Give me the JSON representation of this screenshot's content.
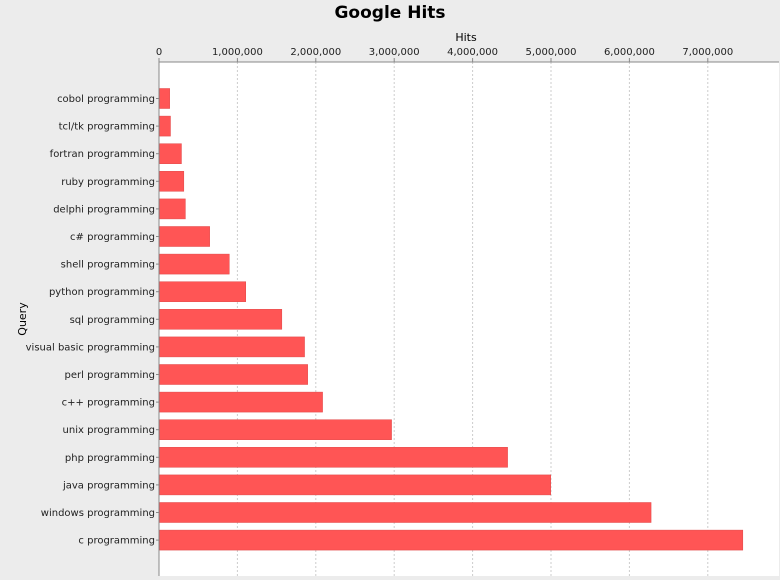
{
  "chart_data": {
    "type": "bar",
    "orientation": "horizontal",
    "title": "Google Hits",
    "xlabel": "Hits",
    "ylabel": "Query",
    "xlim": [
      0,
      7700000
    ],
    "xticks": [
      0,
      1000000,
      2000000,
      3000000,
      4000000,
      5000000,
      6000000,
      7000000
    ],
    "xtick_labels": [
      "0",
      "1,000,000",
      "2,000,000",
      "3,000,000",
      "4,000,000",
      "5,000,000",
      "6,000,000",
      "7,000,000"
    ],
    "x_axis_position": "top",
    "grid": "vertical dashed",
    "bar_color": "#ff5555",
    "categories": [
      "cobol programming",
      "tcl/tk programming",
      "fortran programming",
      "ruby programming",
      "delphi programming",
      "c# programming",
      "shell programming",
      "python programming",
      "sql programming",
      "visual basic programming",
      "perl programming",
      "c++ programming",
      "unix programming",
      "php programming",
      "java programming",
      "windows programming",
      "c programming"
    ],
    "values": [
      130000,
      140000,
      280000,
      310000,
      330000,
      640000,
      890000,
      1100000,
      1560000,
      1850000,
      1890000,
      2080000,
      2960000,
      4440000,
      4990000,
      6270000,
      7440000
    ]
  }
}
